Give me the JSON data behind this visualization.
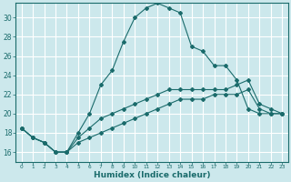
{
  "xlabel": "Humidex (Indice chaleur)",
  "ylabel": "",
  "bg_color": "#cce8ec",
  "grid_color": "#ffffff",
  "line_color": "#1a6b6b",
  "x_ticks": [
    0,
    1,
    2,
    3,
    4,
    5,
    6,
    7,
    8,
    9,
    10,
    11,
    12,
    13,
    14,
    15,
    16,
    17,
    18,
    19,
    20,
    21,
    22,
    23
  ],
  "y_ticks": [
    16,
    18,
    20,
    22,
    24,
    26,
    28,
    30
  ],
  "ylim": [
    15.0,
    31.5
  ],
  "xlim": [
    -0.5,
    23.5
  ],
  "series1_x": [
    0,
    1,
    2,
    3,
    4,
    5,
    6,
    7,
    8,
    9,
    10,
    11,
    12,
    13,
    14,
    15,
    16,
    17,
    18,
    19,
    20,
    21,
    22,
    23
  ],
  "series1_y": [
    18.5,
    17.5,
    17.0,
    16.0,
    16.0,
    18.0,
    20.0,
    23.0,
    24.5,
    27.5,
    30.0,
    31.0,
    31.5,
    31.0,
    30.5,
    27.0,
    26.5,
    25.0,
    25.0,
    23.5,
    20.5,
    20.0,
    20.0,
    20.0
  ],
  "series2_x": [
    0,
    1,
    2,
    3,
    4,
    5,
    6,
    7,
    8,
    9,
    10,
    11,
    12,
    13,
    14,
    15,
    16,
    17,
    18,
    19,
    20,
    21,
    22,
    23
  ],
  "series2_y": [
    18.5,
    17.5,
    17.0,
    16.0,
    16.0,
    17.5,
    18.5,
    19.5,
    20.0,
    20.5,
    21.0,
    21.5,
    22.0,
    22.5,
    22.5,
    22.5,
    22.5,
    22.5,
    22.5,
    23.0,
    23.5,
    21.0,
    20.5,
    20.0
  ],
  "series3_x": [
    0,
    1,
    2,
    3,
    4,
    5,
    6,
    7,
    8,
    9,
    10,
    11,
    12,
    13,
    14,
    15,
    16,
    17,
    18,
    19,
    20,
    21,
    22,
    23
  ],
  "series3_y": [
    18.5,
    17.5,
    17.0,
    16.0,
    16.0,
    17.0,
    17.5,
    18.0,
    18.5,
    19.0,
    19.5,
    20.0,
    20.5,
    21.0,
    21.5,
    21.5,
    21.5,
    22.0,
    22.0,
    22.0,
    22.5,
    20.5,
    20.0,
    20.0
  ],
  "tick_fontsize": 5.5,
  "xlabel_fontsize": 6.5
}
